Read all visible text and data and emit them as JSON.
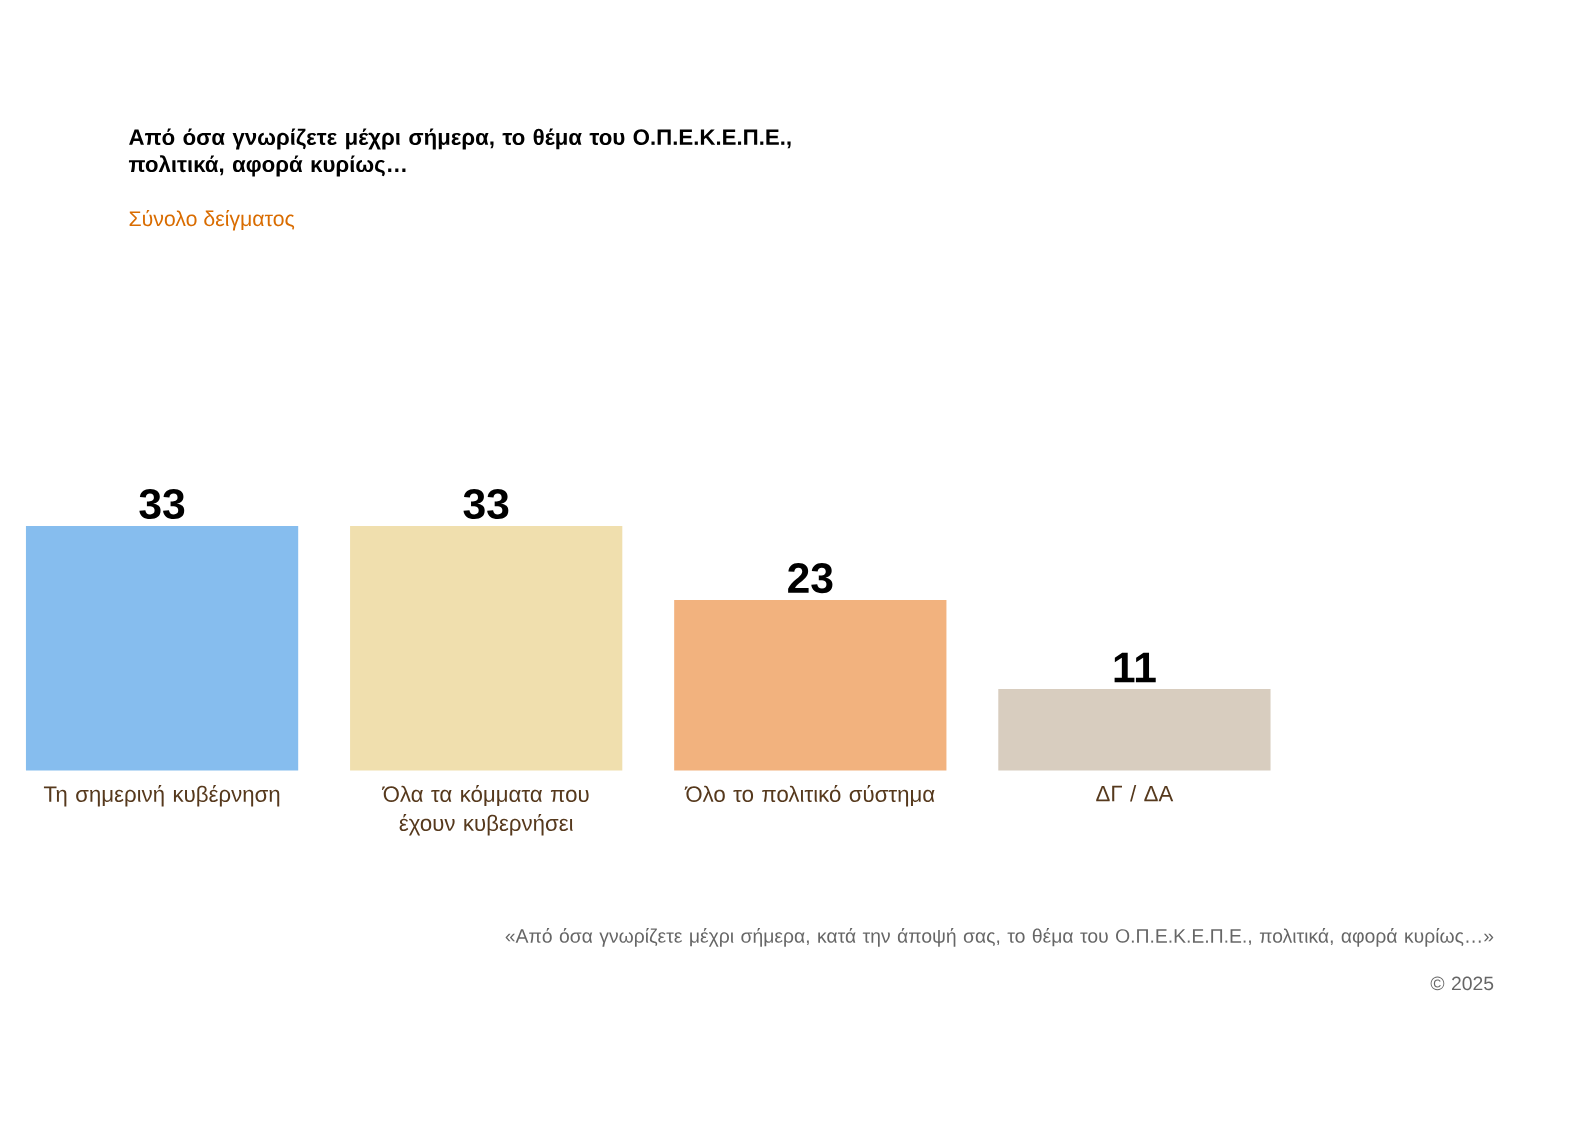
{
  "chart_data": {
    "type": "bar",
    "title": "Από όσα γνωρίζετε μέχρι σήμερα, το θέμα του Ο.Π.Ε.Κ.Ε.Π.Ε., πολιτικά, αφορά κυρίως…",
    "subtitle": "Σύνολο δείγματος",
    "categories": [
      "Τη σημερινή κυβέρνηση",
      "Όλα τα κόμματα που έχουν κυβερνήσει",
      "Όλο το πολιτικό σύστημα",
      "ΔΓ / ΔΑ"
    ],
    "values": [
      33,
      33,
      23,
      11
    ],
    "colors": [
      "#86bdee",
      "#f0dfae",
      "#f2b27e",
      "#d8cdbf"
    ],
    "data_labels": true,
    "annotations": [
      "«Από όσα γνωρίζετε μέχρι σήμερα, κατά την άποψή σας, το θέμα του Ο.Π.Ε.Κ.Ε.Π.Ε., πολιτικά, αφορά κυρίως…»",
      "© 2025"
    ]
  }
}
